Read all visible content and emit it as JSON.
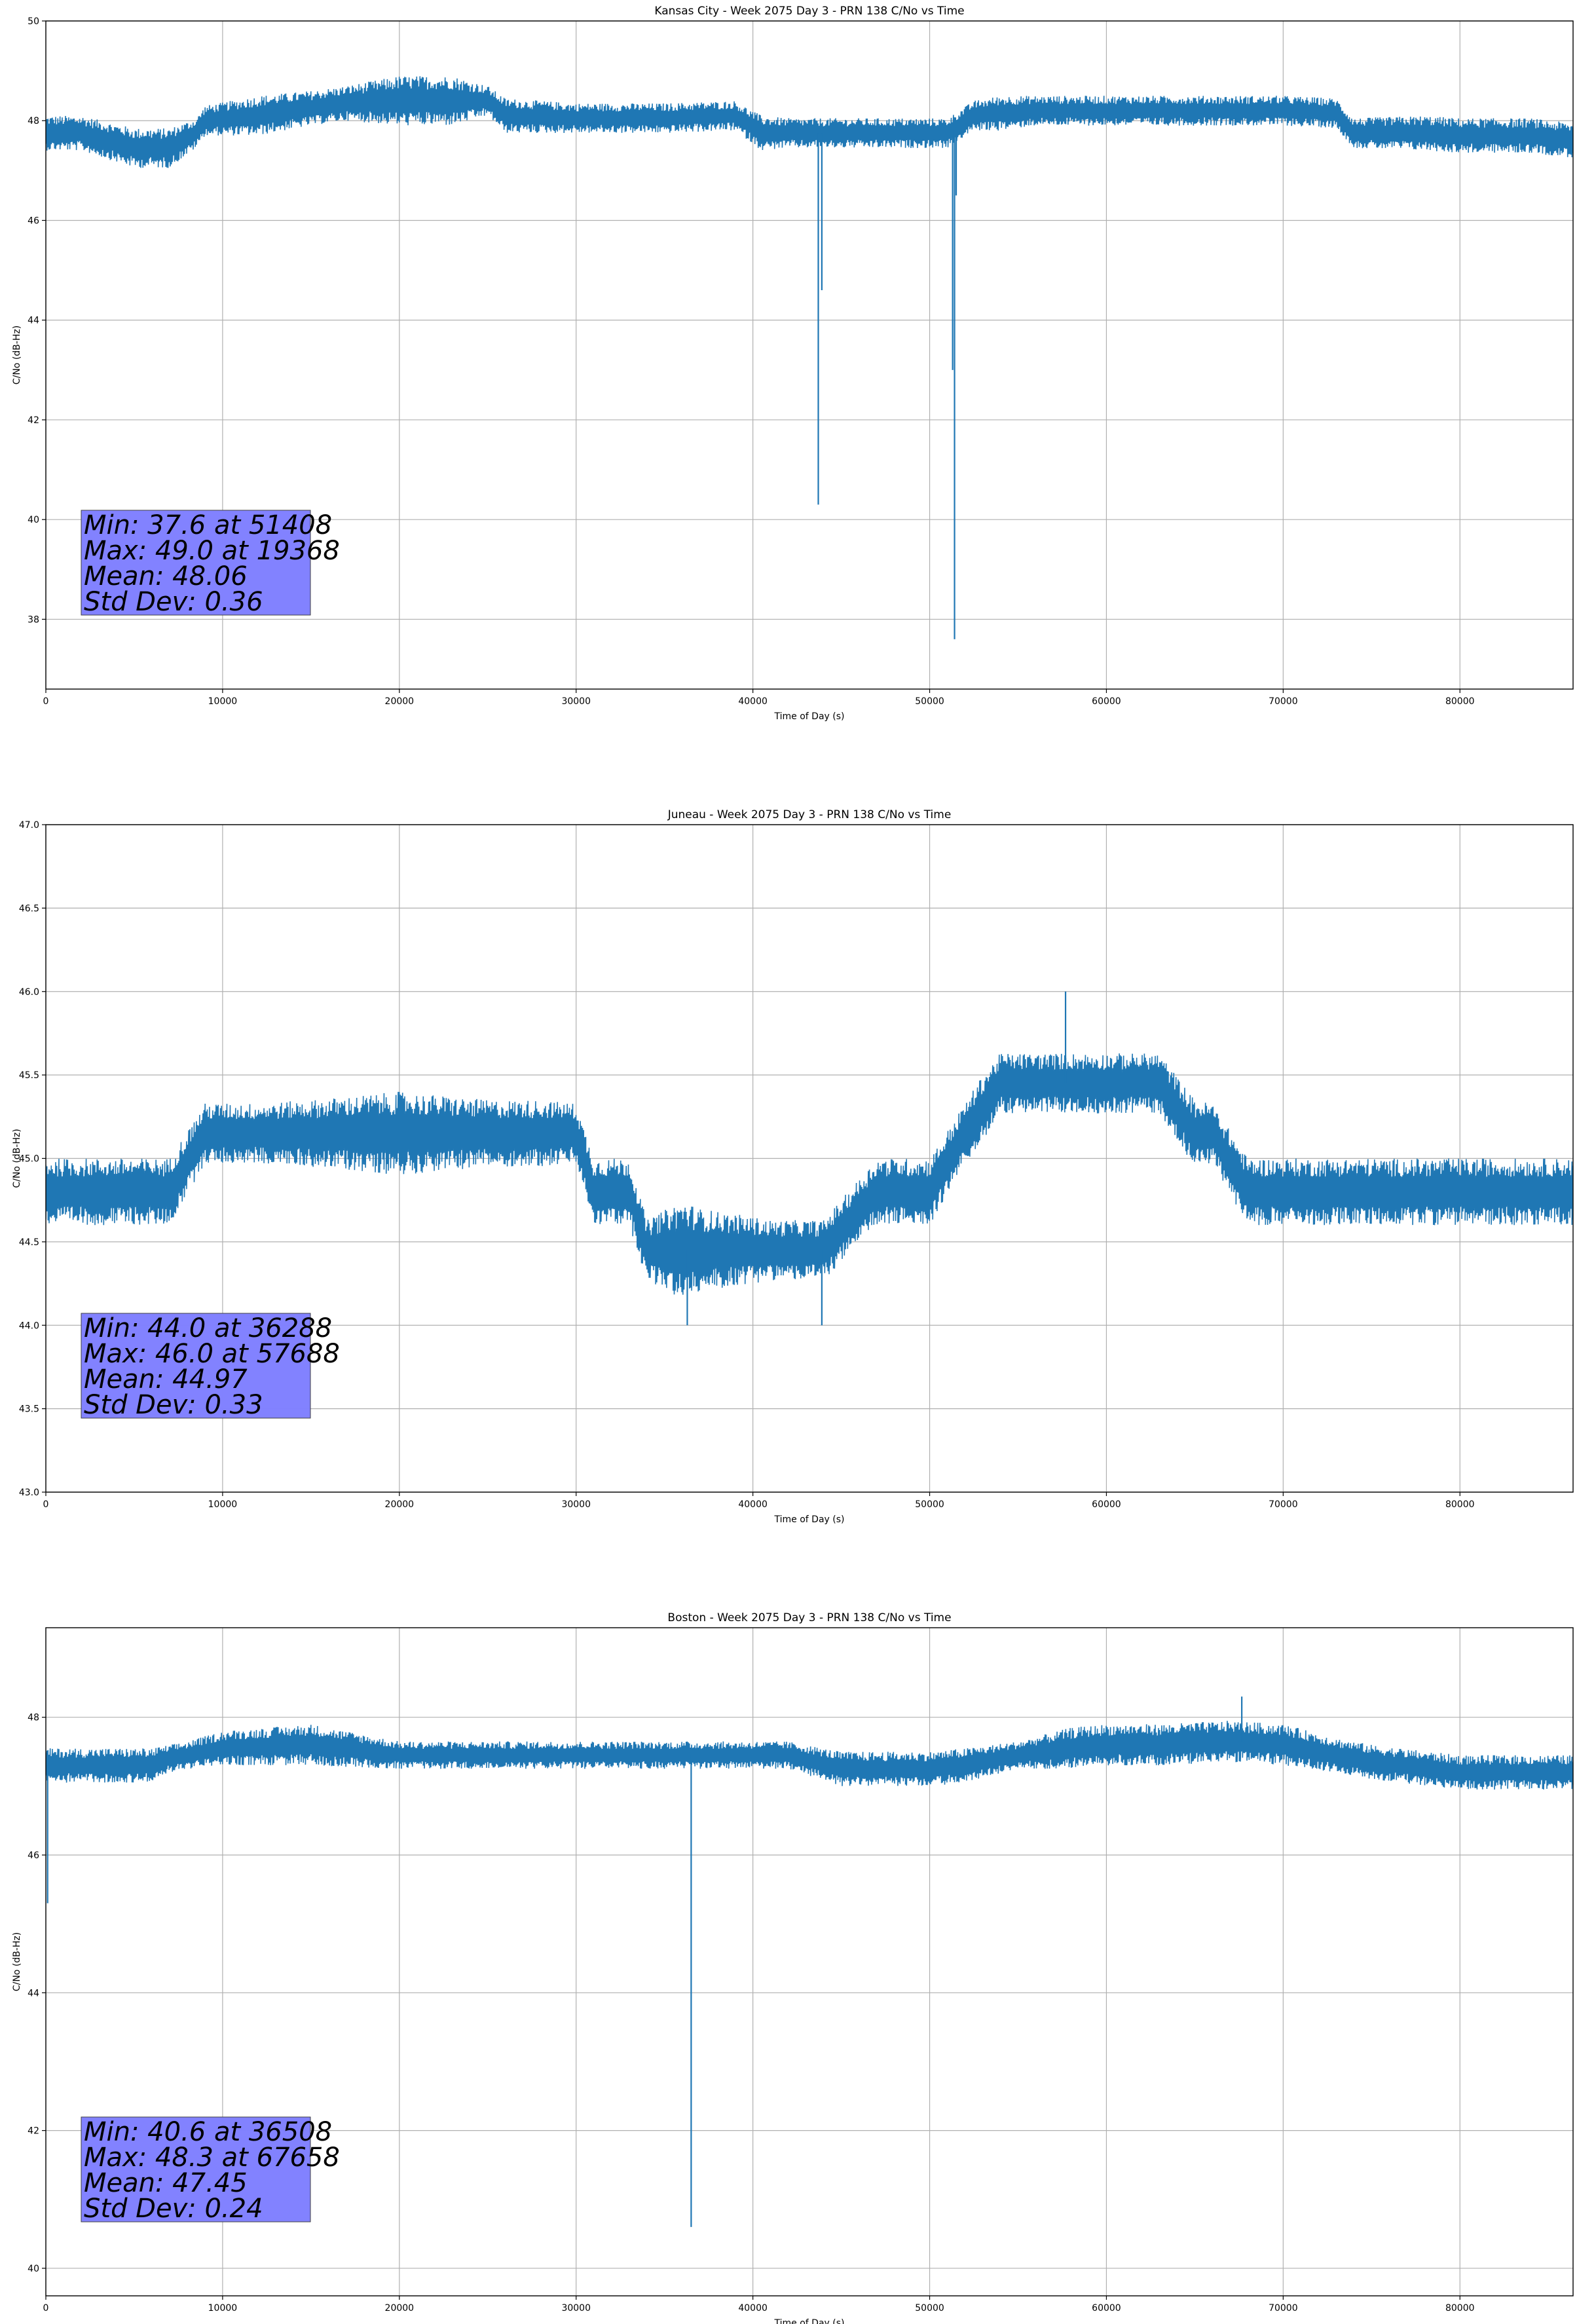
{
  "chart_data": [
    {
      "type": "line",
      "title": "Kansas City - Week 2075 Day 3 - PRN 138 C/No vs Time",
      "xlabel": "Time of Day (s)",
      "ylabel": "C/No (dB-Hz)",
      "xlim": [
        0,
        86400
      ],
      "ylim": [
        36.6,
        50
      ],
      "xticks": [
        0,
        10000,
        20000,
        30000,
        40000,
        50000,
        60000,
        70000,
        80000
      ],
      "yticks": [
        38,
        40,
        42,
        44,
        46,
        48,
        50
      ],
      "ytick_labels": [
        "38",
        "40",
        "42",
        "44",
        "46",
        "48",
        "50"
      ],
      "grid": true,
      "color": "#1f77b4",
      "series": [
        {
          "x": [
            0,
            2000,
            5000,
            7000,
            8500,
            9000,
            12000,
            15000,
            17000,
            20000,
            23000,
            25000,
            26000,
            30000,
            35000,
            39000,
            40500,
            42000,
            44000,
            47000,
            50000,
            51000,
            52500,
            54000,
            56000,
            60000,
            65000,
            70000,
            73000,
            74000,
            78000,
            80000,
            84000,
            86400
          ],
          "mid": [
            47.75,
            47.75,
            47.45,
            47.45,
            47.75,
            48.0,
            48.1,
            48.25,
            48.35,
            48.4,
            48.4,
            48.4,
            48.1,
            48.05,
            48.05,
            48.1,
            47.75,
            47.75,
            47.75,
            47.75,
            47.75,
            47.75,
            48.1,
            48.15,
            48.2,
            48.2,
            48.2,
            48.2,
            48.15,
            47.75,
            47.75,
            47.7,
            47.7,
            47.6
          ],
          "amp": [
            0.35,
            0.35,
            0.4,
            0.4,
            0.3,
            0.3,
            0.4,
            0.35,
            0.35,
            0.5,
            0.5,
            0.3,
            0.35,
            0.3,
            0.3,
            0.3,
            0.35,
            0.3,
            0.3,
            0.3,
            0.3,
            0.3,
            0.3,
            0.35,
            0.3,
            0.3,
            0.3,
            0.3,
            0.3,
            0.3,
            0.35,
            0.35,
            0.35,
            0.35
          ],
          "spikes": [
            [
              43700,
              40.3
            ],
            [
              43900,
              44.6
            ],
            [
              51300,
              43.0
            ],
            [
              51408,
              37.6
            ],
            [
              51500,
              46.5
            ]
          ]
        }
      ],
      "annotation": [
        "Min: 37.6 at 51408",
        "Max: 49.0 at 19368",
        "Mean: 48.06",
        "Std Dev: 0.36"
      ],
      "annotation_color": "#8080ff"
    },
    {
      "type": "line",
      "title": "Juneau - Week 2075 Day 3 - PRN 138 C/No vs Time",
      "xlabel": "Time of Day (s)",
      "ylabel": "C/No (dB-Hz)",
      "xlim": [
        0,
        86400
      ],
      "ylim": [
        43.0,
        47.0
      ],
      "xticks": [
        0,
        10000,
        20000,
        30000,
        40000,
        50000,
        60000,
        70000,
        80000
      ],
      "yticks": [
        43.0,
        43.5,
        44.0,
        44.5,
        45.0,
        45.5,
        46.0,
        46.5,
        47.0
      ],
      "ytick_labels": [
        "43.0",
        "43.5",
        "44.0",
        "44.5",
        "45.0",
        "45.5",
        "46.0",
        "46.5",
        "47.0"
      ],
      "grid": true,
      "color": "#1f77b4",
      "series": [
        {
          "x": [
            0,
            3000,
            6000,
            7000,
            9000,
            12000,
            15000,
            20000,
            25000,
            28000,
            30000,
            31000,
            33000,
            34000,
            36000,
            37000,
            40000,
            41000,
            44000,
            47000,
            49000,
            50000,
            52000,
            53000,
            54000,
            57000,
            60000,
            63000,
            65000,
            66000,
            68000,
            72000,
            76000,
            80000,
            84000,
            86400
          ],
          "mid": [
            44.8,
            44.8,
            44.8,
            44.8,
            45.15,
            45.15,
            45.15,
            45.15,
            45.15,
            45.15,
            45.15,
            44.8,
            44.8,
            44.45,
            44.45,
            44.45,
            44.45,
            44.45,
            44.45,
            44.8,
            44.8,
            44.8,
            45.15,
            45.3,
            45.45,
            45.45,
            45.45,
            45.45,
            45.15,
            45.15,
            44.8,
            44.8,
            44.8,
            44.8,
            44.8,
            44.8
          ],
          "amp": [
            0.2,
            0.2,
            0.2,
            0.2,
            0.18,
            0.18,
            0.2,
            0.25,
            0.2,
            0.2,
            0.18,
            0.2,
            0.2,
            0.18,
            0.3,
            0.25,
            0.2,
            0.18,
            0.18,
            0.2,
            0.2,
            0.2,
            0.18,
            0.2,
            0.18,
            0.18,
            0.18,
            0.18,
            0.2,
            0.18,
            0.2,
            0.2,
            0.2,
            0.2,
            0.2,
            0.2
          ],
          "spikes": [
            [
              36288,
              44.0
            ],
            [
              43900,
              44.0
            ],
            [
              57688,
              46.0
            ]
          ]
        }
      ],
      "annotation": [
        "Min: 44.0 at 36288",
        "Max: 46.0 at 57688",
        "Mean: 44.97",
        "Std Dev: 0.33"
      ],
      "annotation_color": "#8080ff"
    },
    {
      "type": "line",
      "title": "Boston - Week 2075 Day 3 - PRN 138 C/No vs Time",
      "xlabel": "Time of Day (s)",
      "ylabel": "C/No (dB-Hz)",
      "xlim": [
        0,
        86400
      ],
      "ylim": [
        39.6,
        49.3
      ],
      "xticks": [
        0,
        10000,
        20000,
        30000,
        40000,
        50000,
        60000,
        70000,
        80000
      ],
      "yticks": [
        40,
        42,
        44,
        46,
        48
      ],
      "ytick_labels": [
        "40",
        "42",
        "44",
        "46",
        "48"
      ],
      "grid": true,
      "color": "#1f77b4",
      "series": [
        {
          "x": [
            0,
            3000,
            6000,
            7000,
            8000,
            10000,
            15000,
            20000,
            25000,
            30000,
            35000,
            37000,
            40000,
            42000,
            45000,
            47000,
            50000,
            52000,
            55000,
            58000,
            60000,
            63000,
            67000,
            70000,
            73000,
            75000,
            80000,
            86400
          ],
          "mid": [
            47.3,
            47.3,
            47.3,
            47.4,
            47.45,
            47.55,
            47.6,
            47.45,
            47.45,
            47.45,
            47.45,
            47.45,
            47.45,
            47.45,
            47.25,
            47.25,
            47.25,
            47.3,
            47.45,
            47.55,
            47.6,
            47.6,
            47.65,
            47.6,
            47.45,
            47.35,
            47.2,
            47.2
          ],
          "amp": [
            0.25,
            0.25,
            0.25,
            0.2,
            0.2,
            0.25,
            0.3,
            0.2,
            0.2,
            0.2,
            0.2,
            0.2,
            0.2,
            0.2,
            0.25,
            0.25,
            0.25,
            0.25,
            0.2,
            0.3,
            0.3,
            0.3,
            0.3,
            0.3,
            0.25,
            0.25,
            0.25,
            0.25
          ],
          "spikes": [
            [
              100,
              45.3
            ],
            [
              36508,
              40.6
            ],
            [
              67658,
              48.3
            ]
          ]
        }
      ],
      "annotation": [
        "Min: 40.6 at 36508",
        "Max: 48.3 at 67658",
        "Mean: 47.45",
        "Std Dev: 0.24"
      ],
      "annotation_color": "#8080ff"
    }
  ]
}
